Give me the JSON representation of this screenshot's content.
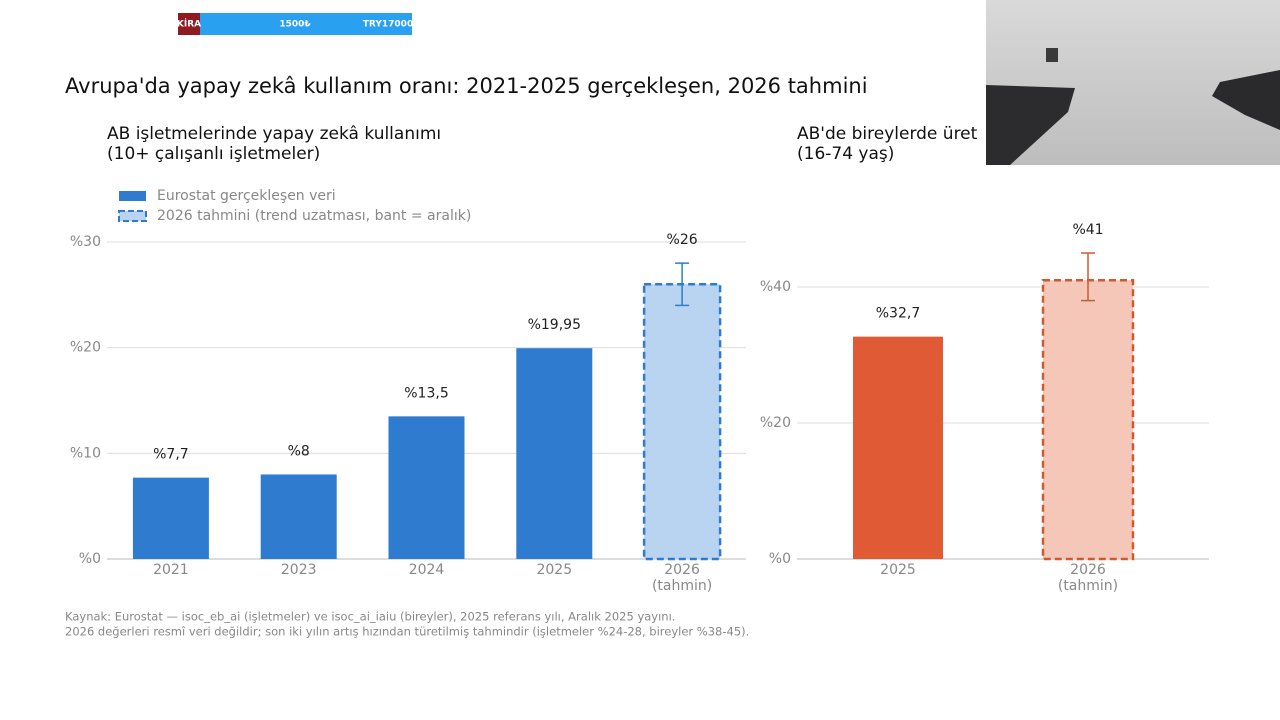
{
  "banner": {
    "label": "KİRA",
    "price": "1500₺",
    "total": "TRY17000"
  },
  "title": "Avrupa'da yapay zekâ kullanım oranı: 2021-2025 gerçekleşen, 2026 tahmini",
  "chart_data": [
    {
      "type": "bar",
      "title": "AB işletmelerinde yapay zekâ kullanımı\n(10+ çalışanlı işletmeler)",
      "categories": [
        "2021",
        "2023",
        "2024",
        "2025",
        "2026\n(tahmin)"
      ],
      "series": [
        {
          "name": "Eurostat gerçekleşen veri",
          "color": "#2f7bcf",
          "values": [
            7.7,
            8,
            13.5,
            19.95,
            null
          ],
          "value_labels": [
            "%7,7",
            "%8",
            "%13,5",
            "%19,95",
            null
          ]
        },
        {
          "name": "2026 tahmini (trend uzatması, bant = aralık)",
          "color": "#b8d4f0",
          "edge_color": "#2f7bcf",
          "dashed": true,
          "values": [
            null,
            null,
            null,
            null,
            26
          ],
          "value_labels": [
            null,
            null,
            null,
            null,
            "%26"
          ],
          "errors": [
            null,
            null,
            null,
            null,
            [
              24,
              28
            ]
          ]
        }
      ],
      "ylim": [
        0,
        30
      ],
      "yticks": [
        {
          "value": 0,
          "label": "%0"
        },
        {
          "value": 10,
          "label": "%10"
        },
        {
          "value": 20,
          "label": "%20"
        },
        {
          "value": 30,
          "label": "%30"
        }
      ],
      "grid": true,
      "legend": "upper left"
    },
    {
      "type": "bar",
      "title": "AB'de bireylerde üret\n(16-74 yaş)",
      "categories": [
        "2025",
        "2026\n(tahmin)"
      ],
      "values": [
        32.7,
        41
      ],
      "value_labels": [
        "%32,7",
        "%41"
      ],
      "colors": [
        "#e05a35",
        "#f4c7b8"
      ],
      "edge_color": "#d05a30",
      "dashed": [
        false,
        true
      ],
      "errors": [
        null,
        [
          38,
          45
        ]
      ],
      "ylim": [
        0,
        45
      ],
      "yticks": [
        {
          "value": 0,
          "label": "%0"
        },
        {
          "value": 20,
          "label": "%20"
        },
        {
          "value": 40,
          "label": "%40"
        }
      ],
      "grid": true
    }
  ],
  "source": [
    "Kaynak: Eurostat — isoc_eb_ai (işletmeler) ve isoc_ai_iaiu (bireyler), 2025 referans yılı, Aralık 2025 yayını.",
    "2026 değerleri resmî veri değildir; son iki yılın artış hızından türetilmiş tahmindir (işletmeler %24-28, bireyler %38-45)."
  ]
}
